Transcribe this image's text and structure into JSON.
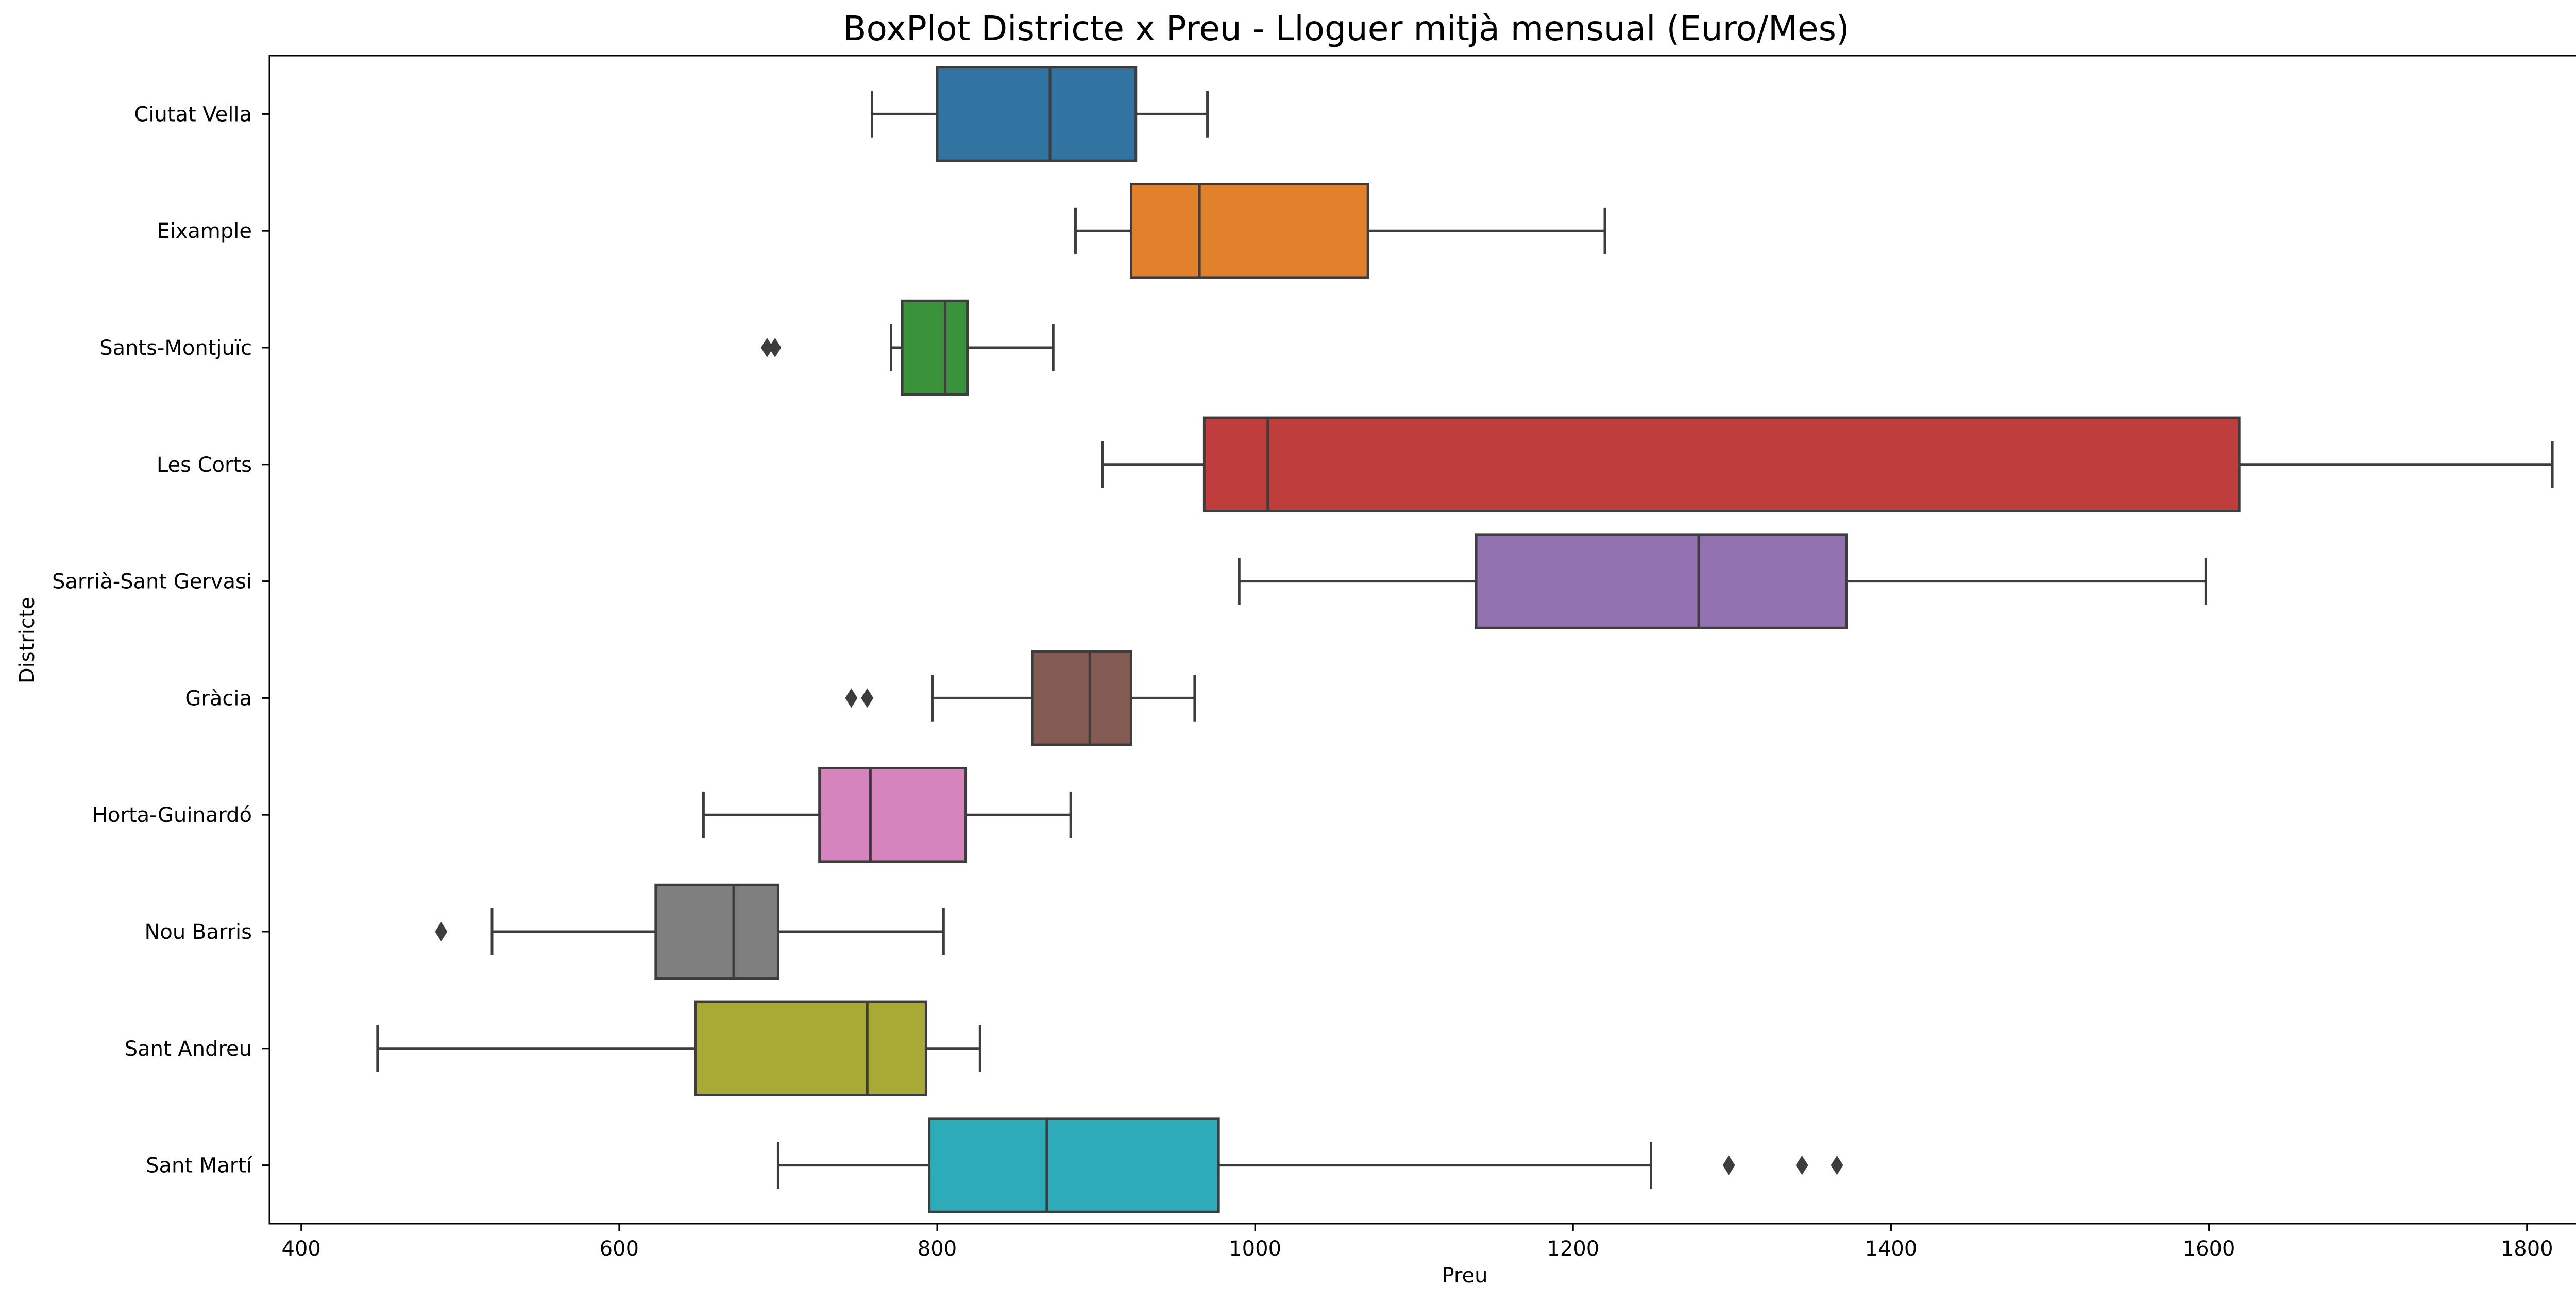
{
  "chart_data": {
    "type": "boxplot",
    "orientation": "horizontal",
    "title": "BoxPlot Districte x Preu - Lloguer mitjà mensual (Euro/Mes)",
    "xlabel": "Preu",
    "ylabel": "Districte",
    "xlim": [
      380,
      1885
    ],
    "xticks": [
      400,
      600,
      800,
      1000,
      1200,
      1400,
      1600,
      1800
    ],
    "grid": false,
    "legend": "none",
    "categories": [
      "Ciutat Vella",
      "Eixample",
      "Sants-Montjuïc",
      "Les Corts",
      "Sarrià-Sant Gervasi",
      "Gràcia",
      "Horta-Guinardó",
      "Nou Barris",
      "Sant Andreu",
      "Sant Martí"
    ],
    "boxes": [
      {
        "category": "Ciutat Vella",
        "whisker_low": 759,
        "q1": 800,
        "median": 871,
        "q3": 925,
        "whisker_high": 970,
        "outliers": [],
        "color": "#3274a1"
      },
      {
        "category": "Eixample",
        "whisker_low": 887,
        "q1": 922,
        "median": 965,
        "q3": 1071,
        "whisker_high": 1220,
        "outliers": [],
        "color": "#e1812c"
      },
      {
        "category": "Sants-Montjuïc",
        "whisker_low": 771,
        "q1": 778,
        "median": 805,
        "q3": 819,
        "whisker_high": 873,
        "outliers": [
          693,
          698
        ],
        "color": "#3a923a"
      },
      {
        "category": "Les Corts",
        "whisker_low": 904,
        "q1": 968,
        "median": 1008,
        "q3": 1619,
        "whisker_high": 1816,
        "outliers": [],
        "color": "#c03d3e"
      },
      {
        "category": "Sarrià-Sant Gervasi",
        "whisker_low": 990,
        "q1": 1139,
        "median": 1279,
        "q3": 1372,
        "whisker_high": 1598,
        "outliers": [],
        "color": "#9372b2"
      },
      {
        "category": "Gràcia",
        "whisker_low": 797,
        "q1": 860,
        "median": 896,
        "q3": 922,
        "whisker_high": 962,
        "outliers": [
          746,
          756
        ],
        "color": "#845b53"
      },
      {
        "category": "Horta-Guinardó",
        "whisker_low": 653,
        "q1": 726,
        "median": 758,
        "q3": 818,
        "whisker_high": 884,
        "outliers": [],
        "color": "#d684bd"
      },
      {
        "category": "Nou Barris",
        "whisker_low": 520,
        "q1": 623,
        "median": 672,
        "q3": 700,
        "whisker_high": 804,
        "outliers": [
          488
        ],
        "color": "#7f7f7f"
      },
      {
        "category": "Sant Andreu",
        "whisker_low": 448,
        "q1": 648,
        "median": 756,
        "q3": 793,
        "whisker_high": 827,
        "outliers": [],
        "color": "#a9aa35"
      },
      {
        "category": "Sant Martí",
        "whisker_low": 700,
        "q1": 795,
        "median": 869,
        "q3": 977,
        "whisker_high": 1249,
        "outliers": [
          1298,
          1344,
          1366
        ],
        "color": "#2eabb8"
      }
    ]
  }
}
